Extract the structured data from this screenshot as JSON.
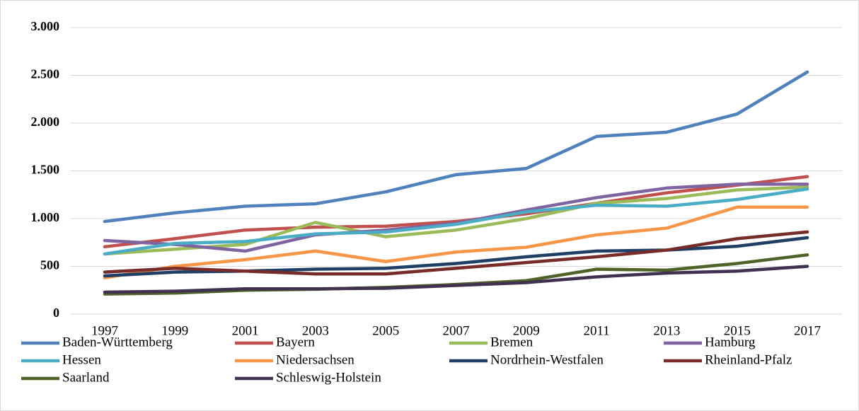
{
  "chart_data": {
    "type": "line",
    "categories": [
      "1997",
      "1999",
      "2001",
      "2003",
      "2005",
      "2007",
      "2009",
      "2011",
      "2013",
      "2015",
      "2017"
    ],
    "series": [
      {
        "name": "Baden-Württemberg",
        "color": "#4f81bd",
        "values": [
          970,
          1060,
          1130,
          1155,
          1280,
          1460,
          1525,
          1860,
          1905,
          2095,
          2535
        ]
      },
      {
        "name": "Bayern",
        "color": "#c0504d",
        "values": [
          705,
          790,
          880,
          910,
          920,
          970,
          1050,
          1160,
          1270,
          1350,
          1440
        ]
      },
      {
        "name": "Bremen",
        "color": "#9bbb59",
        "values": [
          630,
          680,
          730,
          960,
          810,
          880,
          1000,
          1160,
          1210,
          1300,
          1330
        ]
      },
      {
        "name": "Hamburg",
        "color": "#8064a2",
        "values": [
          770,
          730,
          660,
          830,
          880,
          950,
          1090,
          1220,
          1320,
          1360,
          1360
        ]
      },
      {
        "name": "Hessen",
        "color": "#4bacc6",
        "values": [
          630,
          740,
          760,
          840,
          860,
          940,
          1070,
          1140,
          1130,
          1200,
          1310
        ]
      },
      {
        "name": "Niedersachsen",
        "color": "#f79646",
        "values": [
          380,
          500,
          570,
          660,
          550,
          650,
          700,
          830,
          900,
          1120,
          1120
        ]
      },
      {
        "name": "Nordrhein-Westfalen",
        "color": "#1f3f66",
        "values": [
          400,
          440,
          450,
          470,
          480,
          530,
          600,
          660,
          670,
          710,
          800
        ]
      },
      {
        "name": "Rheinland-Pfalz",
        "color": "#772c2a",
        "values": [
          440,
          480,
          450,
          420,
          420,
          480,
          540,
          600,
          670,
          790,
          860
        ]
      },
      {
        "name": "Saarland",
        "color": "#4f6228",
        "values": [
          210,
          220,
          250,
          260,
          280,
          310,
          350,
          470,
          460,
          530,
          620
        ]
      },
      {
        "name": "Schleswig-Holstein",
        "color": "#403151",
        "values": [
          230,
          240,
          265,
          265,
          270,
          300,
          330,
          390,
          430,
          450,
          500
        ]
      }
    ],
    "ylim": [
      0,
      3000
    ],
    "yticks": [
      0,
      500,
      {
        "value": 1000,
        "label": "1.000"
      },
      {
        "value": 1500,
        "label": "1.500"
      },
      {
        "value": 2000,
        "label": "2.000"
      },
      {
        "value": 2500,
        "label": "2.500"
      },
      {
        "value": 3000,
        "label": "3.000"
      }
    ],
    "grid": true
  }
}
